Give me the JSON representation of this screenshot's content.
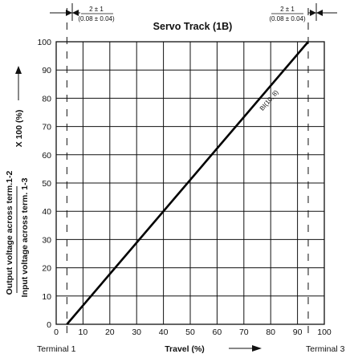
{
  "chart_data": {
    "type": "line",
    "title": "Servo Track (1B)",
    "xlabel": "Travel (%)",
    "ylabel_top": "Output voltage across term.1-2",
    "ylabel_bottom": "Input voltage across term. 1-3",
    "ylabel_mult": "X 100  (%)",
    "xlim": [
      0,
      100
    ],
    "ylim": [
      0,
      100
    ],
    "x_ticks": [
      "0",
      "10",
      "20",
      "30",
      "40",
      "50",
      "60",
      "70",
      "80",
      "90",
      "100"
    ],
    "y_ticks": [
      "0",
      "10",
      "20",
      "30",
      "40",
      "50",
      "60",
      "70",
      "80",
      "90",
      "100"
    ],
    "grid": true,
    "series": [
      {
        "x": [
          4,
          94
        ],
        "y": [
          0,
          100
        ]
      }
    ],
    "line_label": "BI(10, 8)",
    "terminal_markers": [
      4,
      94
    ],
    "terminal_labels": {
      "left": "Terminal 1",
      "right": "Terminal 3"
    },
    "tolerance_label": {
      "value": "2 ± 1",
      "imperial": "(0.08 ± 0.04)"
    }
  }
}
